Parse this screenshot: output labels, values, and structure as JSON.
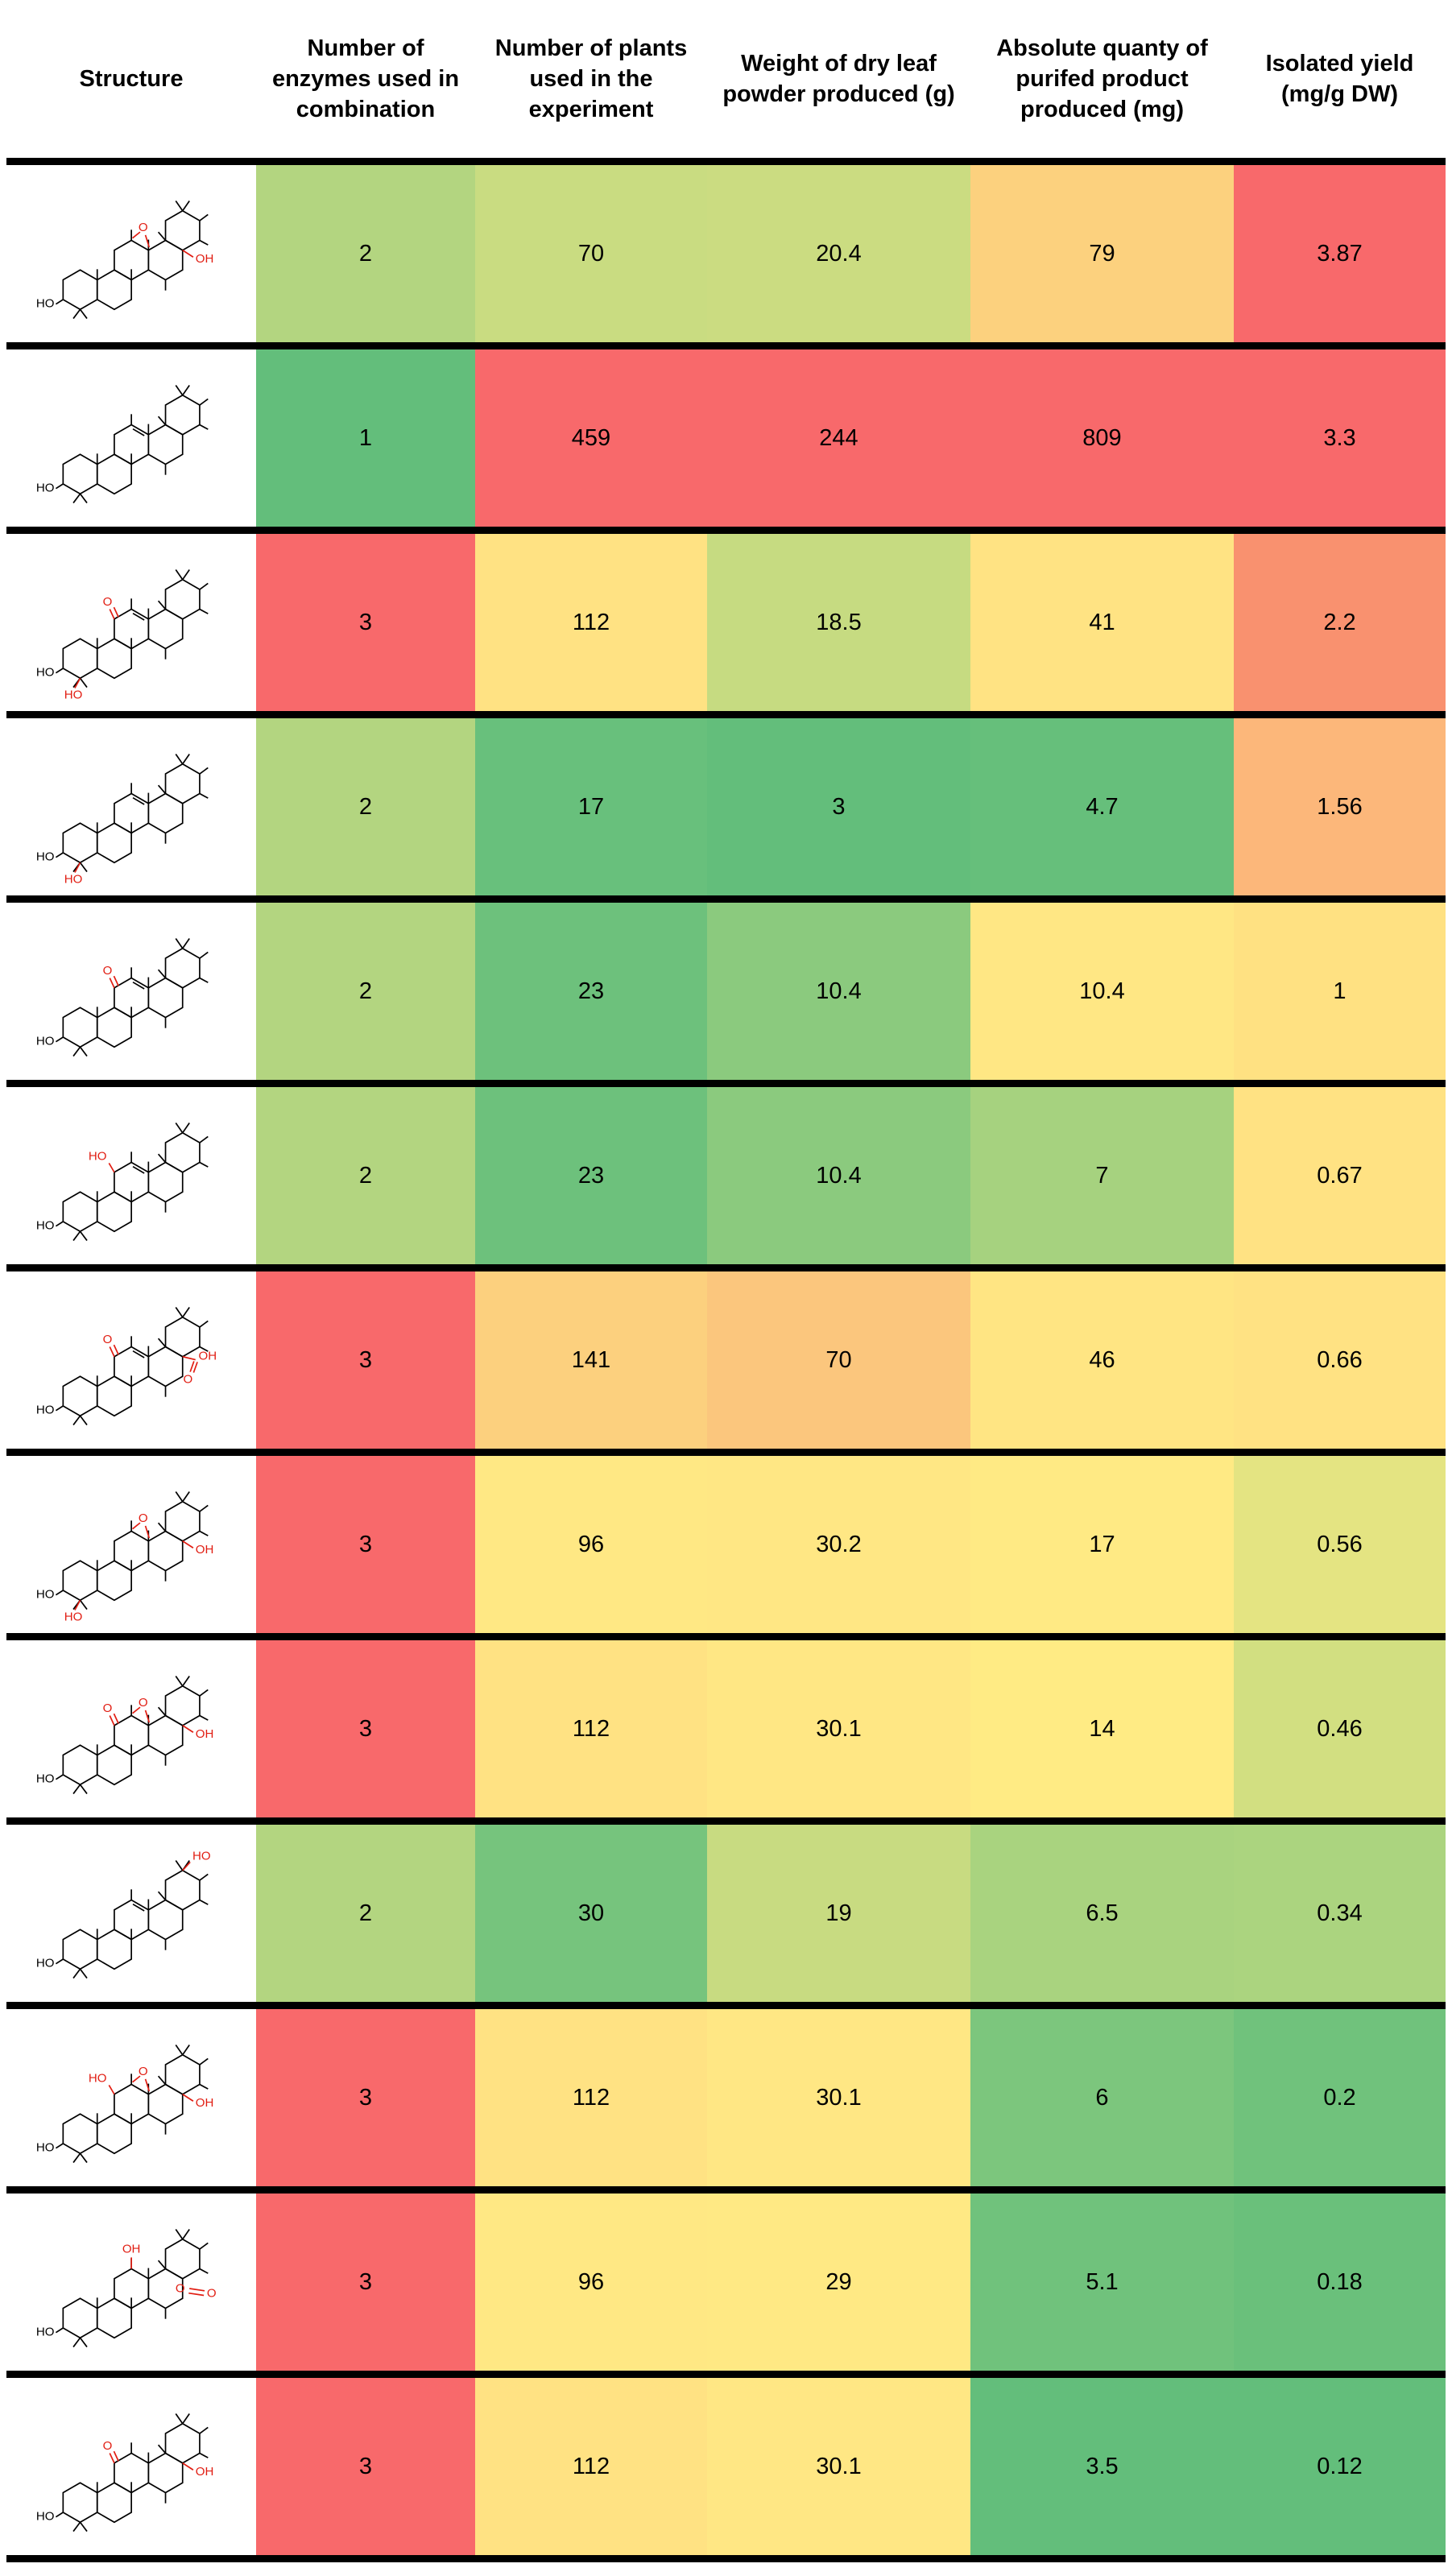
{
  "header": {
    "columns": [
      "Structure",
      "Number of enzymes used in combination",
      "Number of plants used in the experiment",
      "Weight of dry leaf powder produced (g)",
      "Absolute quanty of purifed product produced (mg)",
      "Isolated yield (mg/g DW)"
    ]
  },
  "colors": {
    "separator": "#000000",
    "background": "#ffffff",
    "structure_line": "#000000",
    "substituent_red": "#e11d12"
  },
  "structure_labels": {
    "o": "O",
    "oh": "OH",
    "ho": "HO"
  },
  "table": {
    "rows": [
      {
        "cells": {
          "enzymes": "2",
          "plants": "70",
          "weight": "20.4",
          "product": "79",
          "yield": "3.87"
        },
        "cell_colors": [
          "#b3d580",
          "#c9dc81",
          "#cbdc81",
          "#fcd17e",
          "#f8696b"
        ],
        "structure": {
          "features": [
            "epoxide",
            "oh-right"
          ]
        }
      },
      {
        "cells": {
          "enzymes": "1",
          "plants": "459",
          "weight": "244",
          "product": "809",
          "yield": "3.3"
        },
        "cell_colors": [
          "#63be7b",
          "#f8696b",
          "#f8696b",
          "#f8696b",
          "#f8696b"
        ],
        "structure": {
          "features": [
            "double-bond"
          ]
        }
      },
      {
        "cells": {
          "enzymes": "3",
          "plants": "112",
          "weight": "18.5",
          "product": "41",
          "yield": "2.2"
        },
        "cell_colors": [
          "#f8696b",
          "#ffe283",
          "#c6db81",
          "#ffe383",
          "#f9916f"
        ],
        "structure": {
          "features": [
            "keto",
            "double-bond",
            "ho-bottom"
          ]
        }
      },
      {
        "cells": {
          "enzymes": "2",
          "plants": "17",
          "weight": "3",
          "product": "4.7",
          "yield": "1.56"
        },
        "cell_colors": [
          "#b3d580",
          "#68c07c",
          "#63be7b",
          "#66bf7b",
          "#fcb77a"
        ],
        "structure": {
          "features": [
            "double-bond",
            "ho-bottom"
          ]
        }
      },
      {
        "cells": {
          "enzymes": "2",
          "plants": "23",
          "weight": "10.4",
          "product": "10.4",
          "yield": "1"
        },
        "cell_colors": [
          "#b3d580",
          "#6dc17c",
          "#8bca7e",
          "#ffe784",
          "#ffe182"
        ],
        "structure": {
          "features": [
            "keto",
            "double-bond"
          ]
        }
      },
      {
        "cells": {
          "enzymes": "2",
          "plants": "23",
          "weight": "10.4",
          "product": "7",
          "yield": "0.67"
        },
        "cell_colors": [
          "#b3d580",
          "#6dc17c",
          "#8bca7e",
          "#a6d27f",
          "#ffe283"
        ],
        "structure": {
          "features": [
            "ho-top-left",
            "double-bond"
          ]
        }
      },
      {
        "cells": {
          "enzymes": "3",
          "plants": "141",
          "weight": "70",
          "product": "46",
          "yield": "0.66"
        },
        "cell_colors": [
          "#f8696b",
          "#fcd07e",
          "#fbc67d",
          "#ffe583",
          "#ffe283"
        ],
        "structure": {
          "features": [
            "keto",
            "double-bond",
            "cooh-right"
          ]
        }
      },
      {
        "cells": {
          "enzymes": "3",
          "plants": "96",
          "weight": "30.2",
          "product": "17",
          "yield": "0.56"
        },
        "cell_colors": [
          "#f8696b",
          "#ffe884",
          "#ffe784",
          "#ffea84",
          "#e4e482"
        ],
        "structure": {
          "features": [
            "epoxide",
            "oh-right",
            "ho-bottom"
          ]
        }
      },
      {
        "cells": {
          "enzymes": "3",
          "plants": "112",
          "weight": "30.1",
          "product": "14",
          "yield": "0.46"
        },
        "cell_colors": [
          "#f8696b",
          "#ffe283",
          "#ffe784",
          "#ffeb84",
          "#d2df81"
        ],
        "structure": {
          "features": [
            "keto",
            "epoxide",
            "oh-right"
          ]
        }
      },
      {
        "cells": {
          "enzymes": "2",
          "plants": "30",
          "weight": "19",
          "product": "6.5",
          "yield": "0.34"
        },
        "cell_colors": [
          "#b3d580",
          "#76c47d",
          "#c8db81",
          "#a9d37f",
          "#abd47f"
        ],
        "structure": {
          "features": [
            "ho-top",
            "double-bond"
          ]
        }
      },
      {
        "cells": {
          "enzymes": "3",
          "plants": "112",
          "weight": "30.1",
          "product": "6",
          "yield": "0.2"
        },
        "cell_colors": [
          "#f8696b",
          "#ffe283",
          "#ffe784",
          "#7cc67d",
          "#70c27c"
        ],
        "structure": {
          "features": [
            "ho-top-left",
            "epoxide",
            "oh-right"
          ]
        }
      },
      {
        "cells": {
          "enzymes": "3",
          "plants": "96",
          "weight": "29",
          "product": "5.1",
          "yield": "0.18"
        },
        "cell_colors": [
          "#f8696b",
          "#ffe884",
          "#ffe984",
          "#70c27c",
          "#6ac07b"
        ],
        "structure": {
          "features": [
            "oh-top",
            "lactone"
          ]
        }
      },
      {
        "cells": {
          "enzymes": "3",
          "plants": "112",
          "weight": "30.1",
          "product": "3.5",
          "yield": "0.12"
        },
        "cell_colors": [
          "#f8696b",
          "#ffe283",
          "#ffe784",
          "#63be7b",
          "#63be7b"
        ],
        "structure": {
          "features": [
            "keto",
            "oh-right"
          ]
        }
      }
    ]
  }
}
